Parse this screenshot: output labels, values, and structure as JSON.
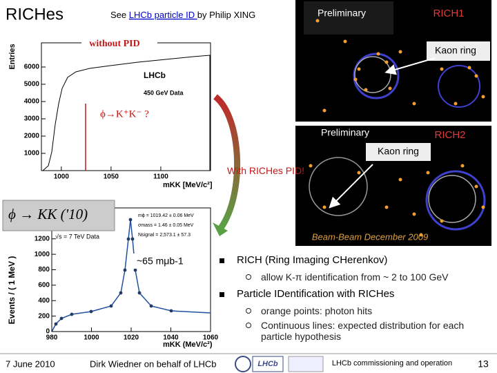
{
  "header": {
    "title": "RICHes",
    "reference_prefix": "See ",
    "reference_link": "LHCb particle ID ",
    "reference_suffix": "by Philip XING"
  },
  "rich1": {
    "tag": "Preliminary",
    "label": "RICH1",
    "annotation": "Kaon ring"
  },
  "rich2": {
    "tag": "Preliminary",
    "label": "RICH2",
    "annotation": "Kaon ring",
    "caption": "Beam-Beam December 2009"
  },
  "plot_without_pid": {
    "tag": "without PID",
    "y_label": "Entries",
    "experiment": "LHCb",
    "dataset": "450 GeV Data",
    "annotation": "ϕ→K⁺K⁻ ?",
    "x_label": "mKK [MeV/c²]",
    "xlim": [
      980,
      1150
    ],
    "xticks": [
      1000,
      1050,
      1100
    ],
    "ylim": [
      0,
      7400
    ],
    "yticks": [
      1000,
      2000,
      3000,
      4000,
      5000,
      6000
    ]
  },
  "arrow_label": "With RICHes PID!",
  "plot_with_pid": {
    "overlay": "ϕ → KK ('10)",
    "y_label": "Events / ( 1 MeV )",
    "dataset": "√s = 7 TeV Data",
    "params": [
      "mϕ = 1019.42 ± 0.06 MeV",
      "σmass = 1.46 ± 0.05 MeV",
      "Nsignal = 2,573.1 ± 57.3"
    ],
    "annotation": "~65 mμb-1",
    "x_label": "mKK (MeV/c²)",
    "xlim": [
      980,
      1060
    ],
    "xticks": [
      980,
      1000,
      1020,
      1040,
      1060
    ],
    "ylim": [
      0,
      1600
    ],
    "yticks": [
      0,
      200,
      400,
      600,
      800,
      1000,
      1200
    ]
  },
  "bullets": [
    {
      "text": "RICH (Ring Imaging CHerenkov)",
      "subs": [
        "allow K-π identification from ~ 2 to 100 GeV"
      ]
    },
    {
      "text": "Particle IDentification  with RICHes",
      "subs": [
        "orange points: photon hits",
        "Continuous lines: expected distribution for each particle hypothesis"
      ]
    }
  ],
  "footer": {
    "date": "7 June 2010",
    "author": "Dirk Wiedner on behalf of LHCb",
    "logo": "LHCb",
    "event": "LHCb commissioning and operation",
    "page": "13"
  }
}
